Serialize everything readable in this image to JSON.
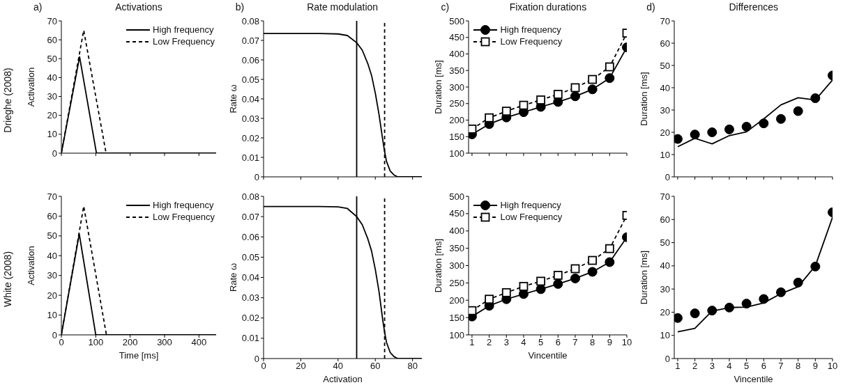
{
  "chart_data": [
    {
      "type": "line",
      "title": "Activations",
      "ylabel": "Activation",
      "annotations": [
        "a)",
        "Drieghe (2008)"
      ],
      "xlim": [
        0,
        450
      ],
      "xticks": [
        0,
        100,
        200,
        300,
        400
      ],
      "ylim": [
        0,
        70
      ],
      "yticks": [
        0,
        10,
        20,
        30,
        40,
        50,
        60,
        70
      ],
      "tick_labels": "y",
      "legend": "top right",
      "grid": false,
      "series": [
        {
          "name": "High frequency",
          "color": "#000000",
          "line_style": "solid",
          "marker": "none",
          "x": [
            0,
            53,
            102,
            450
          ],
          "values": [
            0,
            51,
            0,
            0
          ]
        },
        {
          "name": "Low Frequency",
          "color": "#000000",
          "line_style": "dashed",
          "marker": "none",
          "x": [
            0,
            65,
            130,
            450
          ],
          "values": [
            0,
            65,
            0,
            0
          ]
        }
      ]
    },
    {
      "type": "line",
      "title": "Rate modulation",
      "ylabel": "Rate ω",
      "annotations": [
        "b)"
      ],
      "xlim": [
        0,
        85
      ],
      "xticks": [
        0,
        20,
        40,
        60,
        80
      ],
      "ylim": [
        0,
        0.08
      ],
      "yticks": [
        0,
        0.01,
        0.02,
        0.03,
        0.04,
        0.05,
        0.06,
        0.07,
        0.08
      ],
      "tick_labels": "y",
      "grid": false,
      "ref_lines": [
        {
          "axis": "x",
          "value": 50,
          "color": "#000000",
          "line_style": "solid"
        },
        {
          "axis": "x",
          "value": 65,
          "color": "#000000",
          "line_style": "dashed"
        }
      ],
      "series": [
        {
          "color": "#000000",
          "line_style": "solid",
          "marker": "none",
          "x": [
            0,
            30,
            40,
            45,
            50,
            53,
            56,
            58,
            60,
            62,
            64,
            65,
            66,
            68,
            70,
            72,
            75,
            85
          ],
          "values": [
            0.0735,
            0.0735,
            0.0733,
            0.0725,
            0.0688,
            0.065,
            0.058,
            0.052,
            0.043,
            0.032,
            0.019,
            0.013,
            0.008,
            0.003,
            0.001,
            0,
            0,
            0
          ]
        }
      ]
    },
    {
      "type": "line",
      "title": "Fixation durations",
      "ylabel": "Duration [ms]",
      "annotations": [
        "c)"
      ],
      "x": [
        1,
        2,
        3,
        4,
        5,
        6,
        7,
        8,
        9,
        10
      ],
      "xlim": [
        0.8,
        10
      ],
      "xticks": [
        1,
        2,
        3,
        4,
        5,
        6,
        7,
        8,
        9,
        10
      ],
      "ylim": [
        100,
        500
      ],
      "yticks": [
        100,
        150,
        200,
        250,
        300,
        350,
        400,
        450,
        500
      ],
      "tick_labels": "y",
      "legend": "top left",
      "grid": false,
      "series": [
        {
          "name": "High frequency",
          "color": "#000000",
          "line_style": "solid",
          "marker": "circle",
          "values": [
            157,
            188,
            208,
            224,
            240,
            255,
            272,
            293,
            327,
            420
          ]
        },
        {
          "name": "Low Frequency",
          "color": "#000000",
          "line_style": "dashed",
          "marker": "square",
          "values": [
            173,
            207,
            227,
            245,
            261,
            278,
            298,
            323,
            361,
            463
          ]
        }
      ]
    },
    {
      "type": "line",
      "title": "Differences",
      "ylabel": "Duration [ms]",
      "annotations": [
        "d)"
      ],
      "x": [
        1,
        2,
        3,
        4,
        5,
        6,
        7,
        8,
        9,
        10
      ],
      "xlim": [
        0.8,
        10
      ],
      "xticks": [
        1,
        2,
        3,
        4,
        5,
        6,
        7,
        8,
        9,
        10
      ],
      "ylim": [
        0,
        70
      ],
      "yticks": [
        0,
        10,
        20,
        30,
        40,
        50,
        60,
        70
      ],
      "tick_labels": "y",
      "grid": false,
      "series": [
        {
          "type": "scatter",
          "color": "#000000",
          "marker": "circle",
          "values": [
            17,
            19,
            20,
            21.3,
            22.5,
            24,
            26,
            29.5,
            35.3,
            45.5
          ]
        },
        {
          "color": "#000000",
          "line_style": "solid",
          "marker": "none",
          "values": [
            13.5,
            17.3,
            14.8,
            18.5,
            20.2,
            26,
            32.3,
            35.5,
            34.5,
            43.5
          ]
        }
      ]
    },
    {
      "type": "line",
      "xlabel": "Time [ms]",
      "ylabel": "Activation",
      "annotations": [
        "White (2008)"
      ],
      "xlim": [
        0,
        450
      ],
      "xticks": [
        0,
        100,
        200,
        300,
        400
      ],
      "ylim": [
        0,
        70
      ],
      "yticks": [
        0,
        10,
        20,
        30,
        40,
        50,
        60,
        70
      ],
      "legend": "top right",
      "grid": false,
      "series": [
        {
          "name": "High frequency",
          "color": "#000000",
          "line_style": "solid",
          "marker": "none",
          "x": [
            0,
            52,
            100,
            450
          ],
          "values": [
            0,
            51,
            0,
            0
          ]
        },
        {
          "name": "Low Frequency",
          "color": "#000000",
          "line_style": "dashed",
          "marker": "none",
          "x": [
            0,
            65,
            131,
            450
          ],
          "values": [
            0,
            65,
            0,
            0
          ]
        }
      ]
    },
    {
      "type": "line",
      "xlabel": "Activation",
      "ylabel": "Rate ω",
      "xlim": [
        0,
        85
      ],
      "xticks": [
        0,
        20,
        40,
        60,
        80
      ],
      "ylim": [
        0,
        0.08
      ],
      "yticks": [
        0,
        0.01,
        0.02,
        0.03,
        0.04,
        0.05,
        0.06,
        0.07,
        0.08
      ],
      "grid": false,
      "ref_lines": [
        {
          "axis": "x",
          "value": 50,
          "color": "#000000",
          "line_style": "solid"
        },
        {
          "axis": "x",
          "value": 65,
          "color": "#000000",
          "line_style": "dashed"
        }
      ],
      "series": [
        {
          "color": "#000000",
          "line_style": "solid",
          "marker": "none",
          "x": [
            0,
            30,
            40,
            45,
            50,
            53,
            56,
            58,
            60,
            62,
            64,
            65,
            66,
            68,
            70,
            72,
            75,
            85
          ],
          "values": [
            0.075,
            0.075,
            0.0748,
            0.074,
            0.07,
            0.066,
            0.059,
            0.053,
            0.044,
            0.033,
            0.019,
            0.013,
            0.008,
            0.003,
            0.001,
            0,
            0,
            0
          ]
        }
      ]
    },
    {
      "type": "line",
      "xlabel": "Vincentile",
      "ylabel": "Duration [ms]",
      "x": [
        1,
        2,
        3,
        4,
        5,
        6,
        7,
        8,
        9,
        10
      ],
      "xlim": [
        0.8,
        10
      ],
      "xticks": [
        1,
        2,
        3,
        4,
        5,
        6,
        7,
        8,
        9,
        10
      ],
      "ylim": [
        100,
        500
      ],
      "yticks": [
        100,
        150,
        200,
        250,
        300,
        350,
        400,
        450,
        500
      ],
      "legend": "top left",
      "grid": false,
      "series": [
        {
          "name": "High frequency",
          "color": "#000000",
          "line_style": "solid",
          "marker": "circle",
          "values": [
            153,
            184,
            203,
            218,
            232,
            247,
            263,
            282,
            310,
            382
          ]
        },
        {
          "name": "Low Frequency",
          "color": "#000000",
          "line_style": "dashed",
          "marker": "square",
          "values": [
            170,
            203,
            222,
            240,
            255,
            272,
            291,
            315,
            349,
            445
          ]
        }
      ]
    },
    {
      "type": "line",
      "xlabel": "Vincentile",
      "ylabel": "Duration [ms]",
      "x": [
        1,
        2,
        3,
        4,
        5,
        6,
        7,
        8,
        9,
        10
      ],
      "xlim": [
        0.8,
        10
      ],
      "xticks": [
        1,
        2,
        3,
        4,
        5,
        6,
        7,
        8,
        9,
        10
      ],
      "ylim": [
        0,
        70
      ],
      "yticks": [
        0,
        10,
        20,
        30,
        40,
        50,
        60,
        70
      ],
      "grid": false,
      "series": [
        {
          "type": "scatter",
          "color": "#000000",
          "marker": "circle",
          "values": [
            17.5,
            19.5,
            20.7,
            22,
            23.7,
            25.7,
            28.6,
            32.8,
            39.7,
            63.1
          ]
        },
        {
          "color": "#000000",
          "line_style": "solid",
          "marker": "none",
          "values": [
            11.5,
            13,
            20.5,
            22,
            22.2,
            24,
            28,
            31,
            40,
            61
          ]
        }
      ]
    }
  ]
}
